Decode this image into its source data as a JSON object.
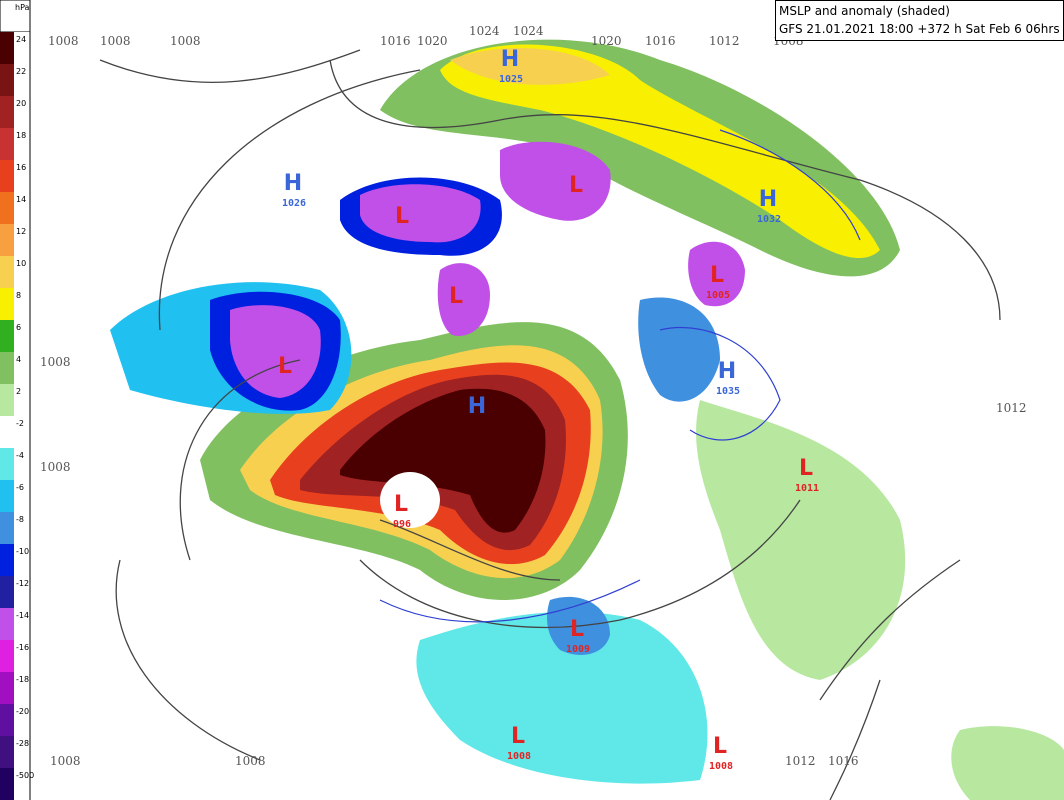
{
  "header": {
    "lines": [
      "MSLP and anomaly (shaded)",
      "GFS 21.01.2021 18:00 +372 h Sat Feb 6 06hrs"
    ]
  },
  "colorbar": {
    "unit": "hPa",
    "entries": [
      {
        "label": "24",
        "color": "#4a0000"
      },
      {
        "label": "22",
        "color": "#781414"
      },
      {
        "label": "20",
        "color": "#a02222"
      },
      {
        "label": "18",
        "color": "#c83232"
      },
      {
        "label": "16",
        "color": "#e8401e"
      },
      {
        "label": "14",
        "color": "#f0701e"
      },
      {
        "label": "12",
        "color": "#f8a040"
      },
      {
        "label": "10",
        "color": "#f8d050"
      },
      {
        "label": "8",
        "color": "#f8f000"
      },
      {
        "label": "6",
        "color": "#30b020"
      },
      {
        "label": "4",
        "color": "#80c060"
      },
      {
        "label": "2",
        "color": "#b8e8a0"
      },
      {
        "label": "-2",
        "color": "#ffffff"
      },
      {
        "label": "-4",
        "color": "#60e8e8"
      },
      {
        "label": "-6",
        "color": "#20c0f0"
      },
      {
        "label": "-8",
        "color": "#4090e0"
      },
      {
        "label": "-10",
        "color": "#0020e0"
      },
      {
        "label": "-12",
        "color": "#2020a0"
      },
      {
        "label": "-14",
        "color": "#c050e8"
      },
      {
        "label": "-16",
        "color": "#e020e0"
      },
      {
        "label": "-18",
        "color": "#a010c0"
      },
      {
        "label": "-20",
        "color": "#6010a0"
      },
      {
        "label": "-28",
        "color": "#401080"
      },
      {
        "label": "-500",
        "color": "#200060"
      }
    ]
  },
  "isobar_labels": [
    "1008",
    "1008",
    "1008",
    "1016",
    "1020",
    "1024",
    "1024",
    "1020",
    "1016",
    "1012",
    "1008",
    "1008",
    "1008",
    "1008",
    "1008",
    "1012",
    "1012",
    "1016"
  ],
  "centers": [
    {
      "letter": "H",
      "value": "1025"
    },
    {
      "letter": "H",
      "value": "1026"
    },
    {
      "letter": "H",
      "value": "1032"
    },
    {
      "letter": "L",
      "value": "1005"
    },
    {
      "letter": "H",
      "value": "1035"
    },
    {
      "letter": "L",
      "value": "996"
    },
    {
      "letter": "L",
      "value": "1011"
    },
    {
      "letter": "L",
      "value": "1009"
    },
    {
      "letter": "L",
      "value": "1008"
    },
    {
      "letter": "L",
      "value": "1008"
    },
    {
      "letter": "H"
    },
    {
      "letter": "L"
    },
    {
      "letter": "L"
    },
    {
      "letter": "L"
    },
    {
      "letter": "L"
    }
  ]
}
